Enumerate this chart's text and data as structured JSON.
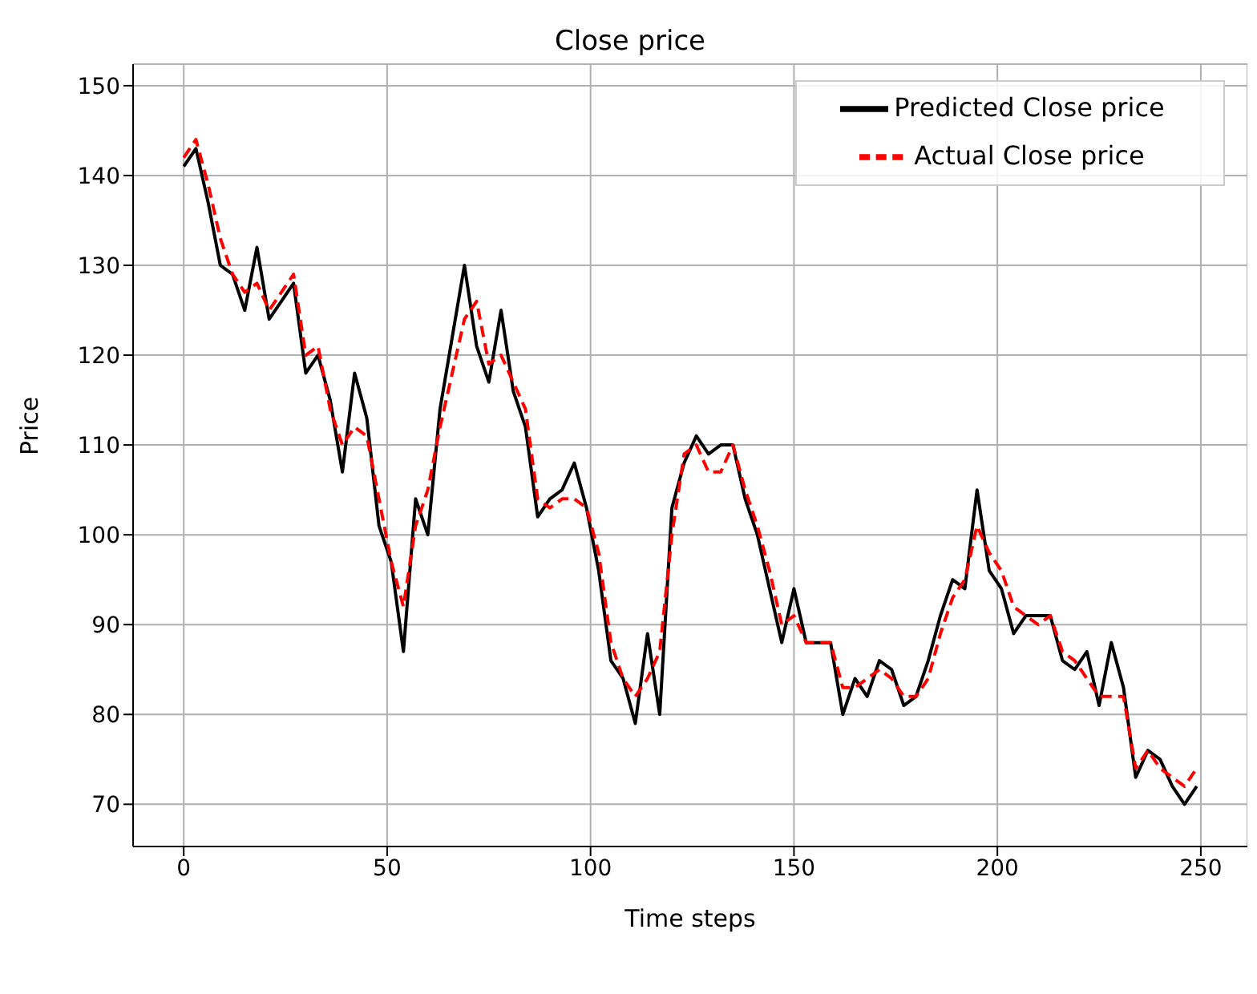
{
  "chart_data": {
    "type": "line",
    "title": "Close price",
    "xlabel": "Time steps",
    "ylabel": "Price",
    "x": [
      0,
      3,
      6,
      9,
      12,
      15,
      18,
      21,
      24,
      27,
      30,
      33,
      36,
      39,
      42,
      45,
      48,
      51,
      54,
      57,
      60,
      63,
      66,
      69,
      72,
      75,
      78,
      81,
      84,
      87,
      90,
      93,
      96,
      99,
      102,
      105,
      108,
      111,
      114,
      117,
      120,
      123,
      126,
      129,
      132,
      135,
      138,
      141,
      144,
      147,
      150,
      153,
      156,
      159,
      162,
      165,
      168,
      171,
      174,
      177,
      180,
      183,
      186,
      189,
      192,
      195,
      198,
      201,
      204,
      207,
      210,
      213,
      216,
      219,
      222,
      225,
      228,
      231,
      234,
      237,
      240,
      243,
      246,
      249
    ],
    "series": [
      {
        "name": "Predicted Close price",
        "color": "#000000",
        "line_style": "solid",
        "values": [
          141,
          143,
          137,
          130,
          129,
          125,
          132,
          124,
          126,
          128,
          118,
          120,
          115,
          107,
          118,
          113,
          101,
          97,
          87,
          104,
          100,
          114,
          122,
          130,
          121,
          117,
          125,
          116,
          112,
          102,
          104,
          105,
          108,
          103,
          96,
          86,
          84,
          79,
          89,
          80,
          103,
          108,
          111,
          109,
          110,
          110,
          104,
          100,
          94,
          88,
          94,
          88,
          88,
          88,
          80,
          84,
          82,
          86,
          85,
          81,
          82,
          86,
          91,
          95,
          94,
          105,
          96,
          94,
          89,
          91,
          91,
          91,
          86,
          85,
          87,
          81,
          88,
          83,
          73,
          76,
          75,
          72,
          70,
          72
        ]
      },
      {
        "name": "Actual Close price",
        "color": "#ff0000",
        "line_style": "dashed",
        "values": [
          142,
          144,
          139,
          133,
          129,
          127,
          128,
          125,
          127,
          129,
          120,
          121,
          114,
          110,
          112,
          111,
          104,
          97,
          92,
          101,
          105,
          112,
          118,
          124,
          126,
          119,
          120,
          117,
          114,
          104,
          103,
          104,
          104,
          103,
          98,
          88,
          84,
          82,
          84,
          87,
          100,
          109,
          110,
          107,
          107,
          110,
          105,
          101,
          96,
          90,
          91,
          88,
          88,
          88,
          83,
          83,
          84,
          85,
          84,
          82,
          82,
          84,
          89,
          93,
          95,
          101,
          98,
          96,
          92,
          91,
          90,
          91,
          87,
          86,
          84,
          82,
          82,
          82,
          74,
          76,
          74,
          73,
          72,
          74
        ]
      }
    ],
    "xlim": [
      -12.45,
      261.45
    ],
    "xticks": [
      0,
      50,
      100,
      150,
      200,
      250
    ],
    "ylim": [
      65.3,
      152.4
    ],
    "yticks": [
      70,
      80,
      90,
      100,
      110,
      120,
      130,
      140,
      150
    ],
    "grid": true,
    "legend": "top right",
    "marker": "none"
  }
}
